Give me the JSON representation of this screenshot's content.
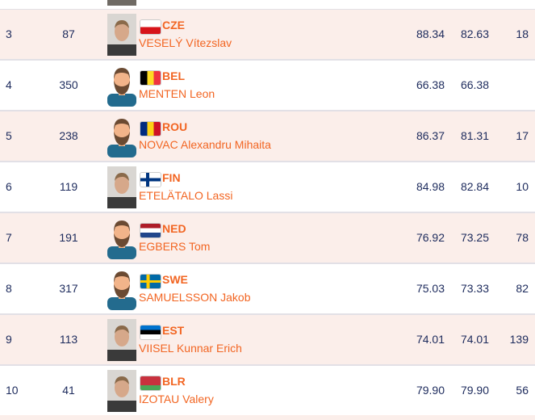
{
  "colors": {
    "accent": "#f26522",
    "text": "#1c2a5c",
    "row_alt": "#fbeeea"
  },
  "rows": [
    {
      "rank": "3",
      "bib": "87",
      "country": "CZE",
      "name": "VESELÝ Vítezslav",
      "best": "88.34",
      "sb": "82.63",
      "last": "18",
      "avatar": "photo",
      "flag": "cze"
    },
    {
      "rank": "4",
      "bib": "350",
      "country": "BEL",
      "name": "MENTEN Leon",
      "best": "66.38",
      "sb": "66.38",
      "last": "",
      "avatar": "illustration",
      "flag": "bel"
    },
    {
      "rank": "5",
      "bib": "238",
      "country": "ROU",
      "name": "NOVAC Alexandru Mihaita",
      "best": "86.37",
      "sb": "81.31",
      "last": "17",
      "avatar": "illustration",
      "flag": "rou"
    },
    {
      "rank": "6",
      "bib": "119",
      "country": "FIN",
      "name": "ETELÄTALO Lassi",
      "best": "84.98",
      "sb": "82.84",
      "last": "10",
      "avatar": "photo",
      "flag": "fin"
    },
    {
      "rank": "7",
      "bib": "191",
      "country": "NED",
      "name": "EGBERS Tom",
      "best": "76.92",
      "sb": "73.25",
      "last": "78",
      "avatar": "illustration",
      "flag": "ned"
    },
    {
      "rank": "8",
      "bib": "317",
      "country": "SWE",
      "name": "SAMUELSSON Jakob",
      "best": "75.03",
      "sb": "73.33",
      "last": "82",
      "avatar": "illustration",
      "flag": "swe"
    },
    {
      "rank": "9",
      "bib": "113",
      "country": "EST",
      "name": "VIISEL Kunnar Erich",
      "best": "74.01",
      "sb": "74.01",
      "last": "139",
      "avatar": "photo",
      "flag": "est"
    },
    {
      "rank": "10",
      "bib": "41",
      "country": "BLR",
      "name": "IZOTAU Valery",
      "best": "79.90",
      "sb": "79.90",
      "last": "56",
      "avatar": "photo",
      "flag": "blr"
    }
  ]
}
